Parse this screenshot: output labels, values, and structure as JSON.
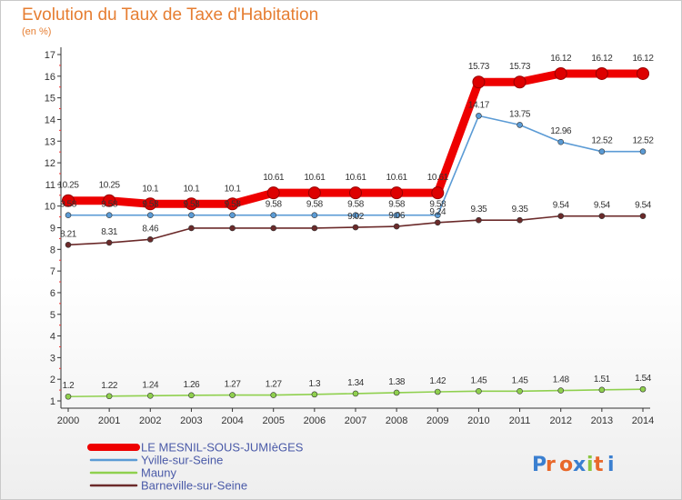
{
  "title": "Evolution du Taux de Taxe d'Habitation",
  "unit_label": "(en %)",
  "logo": "Proxiti",
  "chart_data": {
    "type": "line",
    "x": [
      2000,
      2001,
      2002,
      2003,
      2004,
      2005,
      2006,
      2007,
      2008,
      2009,
      2010,
      2011,
      2012,
      2013,
      2014
    ],
    "ylim": [
      1,
      17
    ],
    "yticks": [
      1,
      2,
      3,
      4,
      5,
      6,
      7,
      8,
      9,
      10,
      11,
      12,
      13,
      14,
      15,
      16,
      17
    ],
    "grid": false,
    "legend_position": "bottom-left",
    "series": [
      {
        "name": "LE MESNIL-SOUS-JUMIèGES",
        "color": "#ee0000",
        "values": [
          10.25,
          10.25,
          10.1,
          10.1,
          10.1,
          10.61,
          10.61,
          10.61,
          10.61,
          10.61,
          15.73,
          15.73,
          16.12,
          16.12,
          16.12
        ],
        "labels": [
          "10.25",
          "10.25",
          "10.1",
          "10.1",
          "10.1",
          "10.61",
          "10.61",
          "10.61",
          "10.61",
          "10.61",
          "15.73",
          "15.73",
          "16.12",
          "16.12",
          "16.12"
        ]
      },
      {
        "name": "Yville-sur-Seine",
        "color": "#5b9bd5",
        "values": [
          9.58,
          9.58,
          9.58,
          9.58,
          9.58,
          9.58,
          9.58,
          9.58,
          9.58,
          9.58,
          14.17,
          13.75,
          12.96,
          12.52,
          12.52
        ],
        "labels": [
          "9.58",
          "9.58",
          "9.58",
          "9.58",
          "9.58",
          "9.58",
          "9.58",
          "9.58",
          "9.58",
          "9.58",
          "14.17",
          "13.75",
          "12.96",
          "12.52",
          "12.52"
        ]
      },
      {
        "name": "Mauny",
        "color": "#8fd04e",
        "values": [
          1.2,
          1.22,
          1.24,
          1.26,
          1.27,
          1.27,
          1.3,
          1.34,
          1.38,
          1.42,
          1.45,
          1.45,
          1.48,
          1.51,
          1.54
        ],
        "labels": [
          "1.2",
          "1.22",
          "1.24",
          "1.26",
          "1.27",
          "1.27",
          "1.3",
          "1.34",
          "1.38",
          "1.42",
          "1.45",
          "1.45",
          "1.48",
          "1.51",
          "1.54"
        ]
      },
      {
        "name": "Barneville-sur-Seine",
        "color": "#6b2a2a",
        "values": [
          8.21,
          8.31,
          8.46,
          8.98,
          8.98,
          8.98,
          8.98,
          9.02,
          9.06,
          9.24,
          9.35,
          9.35,
          9.54,
          9.54,
          9.54
        ],
        "labels": [
          "8.21",
          "8.31",
          "8.46",
          "",
          "",
          "",
          "",
          "9.02",
          "9.06",
          "9.24",
          "9.35",
          "9.35",
          "9.54",
          "9.54",
          "9.54"
        ]
      }
    ]
  }
}
